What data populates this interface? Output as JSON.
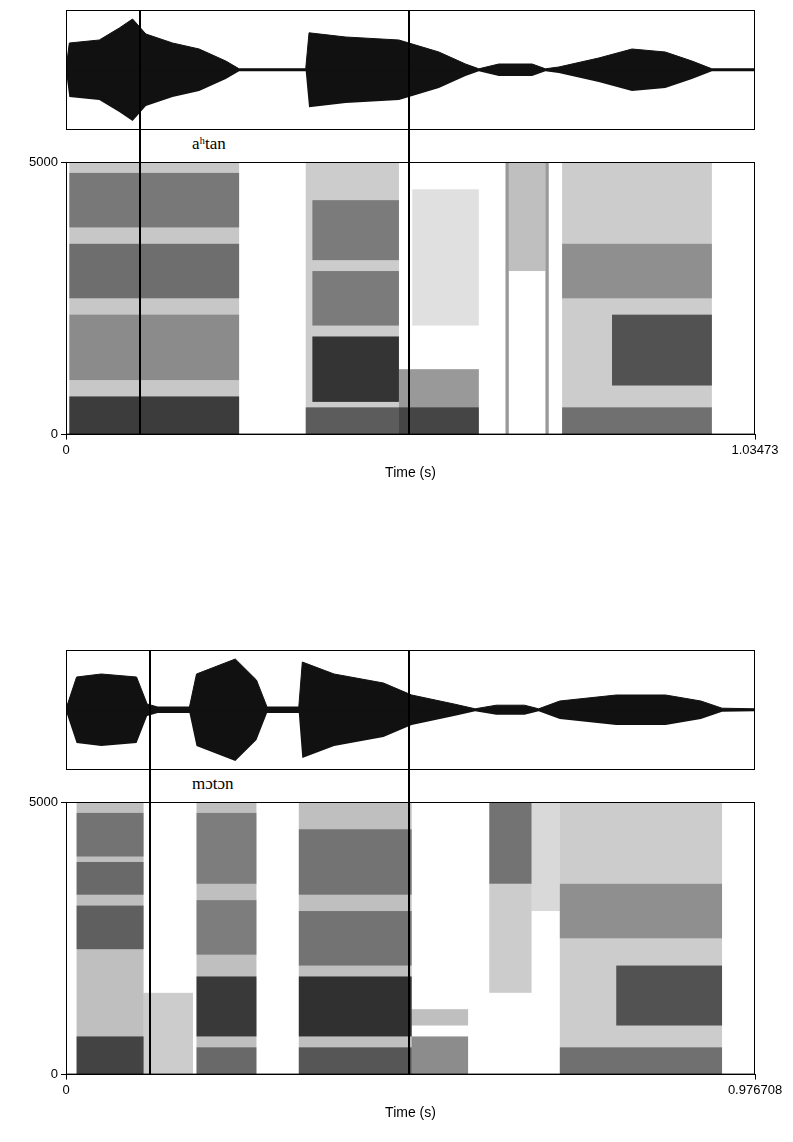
{
  "chart_data": [
    {
      "type": "spectrogram",
      "label": "aʰtan",
      "xlim": [
        0,
        1.03473
      ],
      "xticks": [
        0,
        1.03473
      ],
      "x_label": "Time (s)",
      "ylim": [
        0,
        5000
      ],
      "yticks": [
        0,
        5000
      ],
      "boundaries": [
        0.111,
        0.515
      ],
      "waveform": {
        "ylim": [
          -1,
          1
        ],
        "t": [
          0,
          0.005,
          0.05,
          0.08,
          0.1,
          0.12,
          0.16,
          0.2,
          0.24,
          0.26,
          0.36,
          0.365,
          0.42,
          0.5,
          0.56,
          0.6,
          0.62,
          0.65,
          0.7,
          0.72,
          0.74,
          0.8,
          0.85,
          0.9,
          0.94,
          0.97,
          1.03473
        ],
        "amplitude": [
          0.02,
          0.45,
          0.5,
          0.7,
          0.85,
          0.6,
          0.45,
          0.35,
          0.15,
          0.02,
          0.02,
          0.62,
          0.55,
          0.5,
          0.3,
          0.1,
          0.02,
          0.1,
          0.1,
          0.02,
          0.05,
          0.2,
          0.35,
          0.3,
          0.15,
          0.02,
          0.02
        ]
      },
      "cells": [
        {
          "t": [
            0.005,
            0.26
          ],
          "f": [
            0,
            5000
          ],
          "level": 0.22
        },
        {
          "t": [
            0.005,
            0.26
          ],
          "f": [
            0,
            700
          ],
          "level": 0.7
        },
        {
          "t": [
            0.005,
            0.26
          ],
          "f": [
            1000,
            2200
          ],
          "level": 0.3
        },
        {
          "t": [
            0.005,
            0.26
          ],
          "f": [
            2500,
            3500
          ],
          "level": 0.45
        },
        {
          "t": [
            0.005,
            0.26
          ],
          "f": [
            3800,
            4800
          ],
          "level": 0.4
        },
        {
          "t": [
            0.36,
            0.5
          ],
          "f": [
            0,
            5000
          ],
          "level": 0.2
        },
        {
          "t": [
            0.36,
            0.62
          ],
          "f": [
            0,
            500
          ],
          "level": 0.55
        },
        {
          "t": [
            0.37,
            0.5
          ],
          "f": [
            600,
            1800
          ],
          "level": 0.75
        },
        {
          "t": [
            0.37,
            0.5
          ],
          "f": [
            2000,
            3000
          ],
          "level": 0.4
        },
        {
          "t": [
            0.37,
            0.5
          ],
          "f": [
            3200,
            4300
          ],
          "level": 0.4
        },
        {
          "t": [
            0.5,
            0.62
          ],
          "f": [
            0,
            1200
          ],
          "level": 0.4
        },
        {
          "t": [
            0.52,
            0.62
          ],
          "f": [
            2000,
            4500
          ],
          "level": 0.12
        },
        {
          "t": [
            0.66,
            0.665
          ],
          "f": [
            0,
            5000
          ],
          "level": 0.4
        },
        {
          "t": [
            0.665,
            0.72
          ],
          "f": [
            3000,
            5000
          ],
          "level": 0.25
        },
        {
          "t": [
            0.72,
            0.725
          ],
          "f": [
            0,
            5000
          ],
          "level": 0.4
        },
        {
          "t": [
            0.745,
            0.97
          ],
          "f": [
            0,
            5000
          ],
          "level": 0.2
        },
        {
          "t": [
            0.745,
            0.97
          ],
          "f": [
            0,
            500
          ],
          "level": 0.45
        },
        {
          "t": [
            0.82,
            0.97
          ],
          "f": [
            900,
            2200
          ],
          "level": 0.6
        },
        {
          "t": [
            0.745,
            0.97
          ],
          "f": [
            2500,
            3500
          ],
          "level": 0.3
        }
      ]
    },
    {
      "type": "spectrogram",
      "label": "mɔtɔn",
      "xlim": [
        0,
        0.976708
      ],
      "xticks": [
        0,
        0.976708
      ],
      "x_label": "Time (s)",
      "ylim": [
        0,
        5000
      ],
      "yticks": [
        0,
        5000
      ],
      "boundaries": [
        0.119,
        0.486
      ],
      "waveform": {
        "ylim": [
          -1,
          1
        ],
        "t": [
          0,
          0.015,
          0.05,
          0.1,
          0.115,
          0.13,
          0.175,
          0.185,
          0.24,
          0.27,
          0.285,
          0.33,
          0.335,
          0.38,
          0.45,
          0.49,
          0.55,
          0.58,
          0.61,
          0.65,
          0.67,
          0.7,
          0.78,
          0.85,
          0.9,
          0.93,
          0.976708
        ],
        "amplitude": [
          0.02,
          0.55,
          0.6,
          0.55,
          0.1,
          0.05,
          0.05,
          0.6,
          0.85,
          0.5,
          0.05,
          0.05,
          0.8,
          0.6,
          0.45,
          0.25,
          0.1,
          0.02,
          0.08,
          0.08,
          0.02,
          0.15,
          0.25,
          0.25,
          0.15,
          0.03,
          0.02
        ]
      },
      "cells": [
        {
          "t": [
            0.015,
            0.11
          ],
          "f": [
            0,
            5000
          ],
          "level": 0.25
        },
        {
          "t": [
            0.015,
            0.11
          ],
          "f": [
            0,
            700
          ],
          "level": 0.65
        },
        {
          "t": [
            0.015,
            0.11
          ],
          "f": [
            2300,
            3100
          ],
          "level": 0.5
        },
        {
          "t": [
            0.015,
            0.11
          ],
          "f": [
            3300,
            3900
          ],
          "level": 0.45
        },
        {
          "t": [
            0.015,
            0.11
          ],
          "f": [
            4000,
            4800
          ],
          "level": 0.4
        },
        {
          "t": [
            0.11,
            0.18
          ],
          "f": [
            0,
            1500
          ],
          "level": 0.2
        },
        {
          "t": [
            0.185,
            0.27
          ],
          "f": [
            0,
            5000
          ],
          "level": 0.25
        },
        {
          "t": [
            0.185,
            0.27
          ],
          "f": [
            0,
            500
          ],
          "level": 0.45
        },
        {
          "t": [
            0.185,
            0.27
          ],
          "f": [
            700,
            1800
          ],
          "level": 0.7
        },
        {
          "t": [
            0.185,
            0.27
          ],
          "f": [
            2200,
            3200
          ],
          "level": 0.35
        },
        {
          "t": [
            0.185,
            0.27
          ],
          "f": [
            3500,
            4800
          ],
          "level": 0.35
        },
        {
          "t": [
            0.33,
            0.49
          ],
          "f": [
            0,
            5000
          ],
          "level": 0.25
        },
        {
          "t": [
            0.33,
            0.49
          ],
          "f": [
            0,
            500
          ],
          "level": 0.55
        },
        {
          "t": [
            0.33,
            0.49
          ],
          "f": [
            700,
            1800
          ],
          "level": 0.75
        },
        {
          "t": [
            0.33,
            0.49
          ],
          "f": [
            2000,
            3000
          ],
          "level": 0.4
        },
        {
          "t": [
            0.33,
            0.49
          ],
          "f": [
            3300,
            4500
          ],
          "level": 0.4
        },
        {
          "t": [
            0.49,
            0.57
          ],
          "f": [
            0,
            700
          ],
          "level": 0.45
        },
        {
          "t": [
            0.49,
            0.57
          ],
          "f": [
            900,
            1200
          ],
          "level": 0.25
        },
        {
          "t": [
            0.6,
            0.66
          ],
          "f": [
            3500,
            5000
          ],
          "level": 0.55
        },
        {
          "t": [
            0.6,
            0.66
          ],
          "f": [
            1500,
            3500
          ],
          "level": 0.2
        },
        {
          "t": [
            0.66,
            0.7
          ],
          "f": [
            3000,
            5000
          ],
          "level": 0.15
        },
        {
          "t": [
            0.7,
            0.93
          ],
          "f": [
            0,
            5000
          ],
          "level": 0.2
        },
        {
          "t": [
            0.7,
            0.93
          ],
          "f": [
            0,
            500
          ],
          "level": 0.45
        },
        {
          "t": [
            0.78,
            0.93
          ],
          "f": [
            900,
            2000
          ],
          "level": 0.6
        },
        {
          "t": [
            0.7,
            0.93
          ],
          "f": [
            2500,
            3500
          ],
          "level": 0.3
        }
      ]
    }
  ]
}
